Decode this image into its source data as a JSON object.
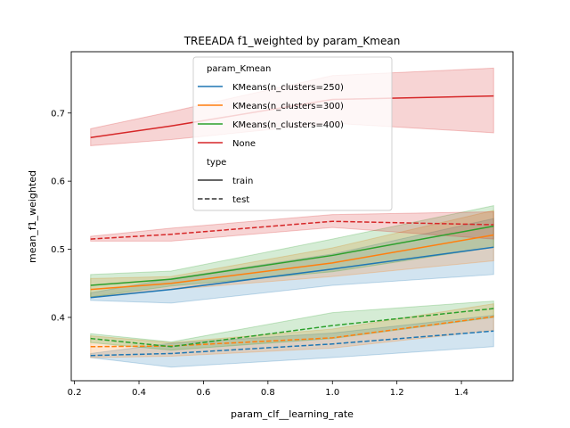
{
  "chart_data": {
    "type": "line",
    "title": "TREEADA f1_weighted by param_Kmean",
    "xlabel": "param_clf__learning_rate",
    "ylabel": "mean_f1_weighted",
    "xlim": [
      0.19,
      1.56
    ],
    "ylim": [
      0.307,
      0.79
    ],
    "x_ticks": [
      0.2,
      0.4,
      0.6,
      0.8,
      1.0,
      1.2,
      1.4
    ],
    "x_tick_labels": [
      "0.2",
      "0.4",
      "0.6",
      "0.8",
      "1.0",
      "1.2",
      "1.4"
    ],
    "y_ticks": [
      0.4,
      0.5,
      0.6,
      0.7
    ],
    "y_tick_labels": [
      "0.4",
      "0.5",
      "0.6",
      "0.7"
    ],
    "grid": false,
    "legend": {
      "placement": "top-center",
      "hue_title": "param_Kmean",
      "style_title": "type",
      "hue_entries": [
        {
          "label": "KMeans(n_clusters=250)",
          "color": "#1f77b4"
        },
        {
          "label": "KMeans(n_clusters=300)",
          "color": "#ff7f0e"
        },
        {
          "label": "KMeans(n_clusters=400)",
          "color": "#2ca02c"
        },
        {
          "label": "None",
          "color": "#d62728"
        }
      ],
      "style_entries": [
        {
          "label": "train",
          "dash": "solid"
        },
        {
          "label": "test",
          "dash": "dashed"
        }
      ]
    },
    "x": [
      0.25,
      0.5,
      1.0,
      1.5
    ],
    "series": [
      {
        "hue": "KMeans(n_clusters=250)",
        "type": "train",
        "color": "#1f77b4",
        "dashed": false,
        "values": [
          0.429,
          0.441,
          0.471,
          0.503
        ],
        "lower": [
          0.425,
          0.421,
          0.447,
          0.463
        ],
        "upper": [
          0.436,
          0.457,
          0.493,
          0.545
        ]
      },
      {
        "hue": "KMeans(n_clusters=300)",
        "type": "train",
        "color": "#ff7f0e",
        "dashed": false,
        "values": [
          0.441,
          0.45,
          0.48,
          0.521
        ],
        "lower": [
          0.43,
          0.441,
          0.46,
          0.483
        ],
        "upper": [
          0.457,
          0.46,
          0.502,
          0.557
        ]
      },
      {
        "hue": "KMeans(n_clusters=400)",
        "type": "train",
        "color": "#2ca02c",
        "dashed": false,
        "values": [
          0.447,
          0.456,
          0.491,
          0.534
        ],
        "lower": [
          0.43,
          0.446,
          0.467,
          0.503
        ],
        "upper": [
          0.463,
          0.468,
          0.515,
          0.564
        ]
      },
      {
        "hue": "None",
        "type": "train",
        "color": "#d62728",
        "dashed": false,
        "values": [
          0.664,
          0.681,
          0.72,
          0.725
        ],
        "lower": [
          0.652,
          0.661,
          0.685,
          0.671
        ],
        "upper": [
          0.677,
          0.702,
          0.755,
          0.766
        ]
      },
      {
        "hue": "KMeans(n_clusters=250)",
        "type": "test",
        "color": "#1f77b4",
        "dashed": true,
        "values": [
          0.344,
          0.347,
          0.361,
          0.38
        ],
        "lower": [
          0.341,
          0.327,
          0.341,
          0.357
        ],
        "upper": [
          0.347,
          0.362,
          0.377,
          0.403
        ]
      },
      {
        "hue": "KMeans(n_clusters=300)",
        "type": "test",
        "color": "#ff7f0e",
        "dashed": true,
        "values": [
          0.357,
          0.358,
          0.37,
          0.401
        ],
        "lower": [
          0.341,
          0.343,
          0.355,
          0.381
        ],
        "upper": [
          0.373,
          0.363,
          0.383,
          0.42
        ]
      },
      {
        "hue": "KMeans(n_clusters=400)",
        "type": "test",
        "color": "#2ca02c",
        "dashed": true,
        "values": [
          0.369,
          0.357,
          0.388,
          0.413
        ],
        "lower": [
          0.363,
          0.352,
          0.369,
          0.4
        ],
        "upper": [
          0.376,
          0.364,
          0.407,
          0.424
        ]
      },
      {
        "hue": "None",
        "type": "test",
        "color": "#d62728",
        "dashed": true,
        "values": [
          0.515,
          0.522,
          0.541,
          0.536
        ],
        "lower": [
          0.512,
          0.512,
          0.532,
          0.515
        ],
        "upper": [
          0.519,
          0.531,
          0.551,
          0.555
        ]
      }
    ]
  }
}
